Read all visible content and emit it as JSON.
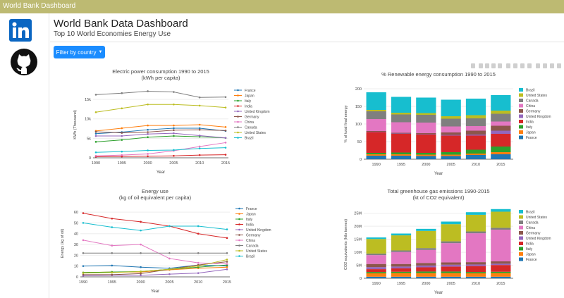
{
  "window": {
    "title": "World Bank Dashboard"
  },
  "header": {
    "title": "World Bank Data Dashboard",
    "subtitle": "Top 10 World Economies Energy Use"
  },
  "filter": {
    "label": "Filter by country"
  },
  "sidebar": {
    "icons": [
      "linkedin-icon",
      "github-icon"
    ]
  },
  "colors": {
    "France": "#1f77b4",
    "Japan": "#ff7f0e",
    "Italy": "#2ca02c",
    "India": "#d62728",
    "United Kingdom": "#9467bd",
    "Germany": "#8c564b",
    "China": "#e377c2",
    "Canada": "#7f7f7f",
    "United States": "#bcbd22",
    "Brazil": "#17becf"
  },
  "chart_data": [
    {
      "id": "electric",
      "type": "line",
      "title": "Electric power consumption 1990 to 2015",
      "subtitle": "(kWh per capita)",
      "xlabel": "Year",
      "ylabel": "KWh (Thousand)",
      "x": [
        1990,
        1995,
        2000,
        2005,
        2010,
        2015
      ],
      "ylim": [
        0,
        17
      ],
      "yticks": [
        0,
        5,
        10,
        15
      ],
      "ytick_labels": [
        "0",
        "5k",
        "10k",
        "15k"
      ],
      "series": [
        {
          "name": "France",
          "values": [
            6.2,
            6.6,
            7.2,
            7.6,
            7.6,
            6.9
          ]
        },
        {
          "name": "Japan",
          "values": [
            6.9,
            7.6,
            8.3,
            8.3,
            8.5,
            7.9
          ]
        },
        {
          "name": "Italy",
          "values": [
            4.1,
            4.6,
            5.3,
            5.6,
            5.4,
            5.1
          ]
        },
        {
          "name": "India",
          "values": [
            0.3,
            0.35,
            0.4,
            0.5,
            0.7,
            0.8
          ]
        },
        {
          "name": "United Kingdom",
          "values": [
            5.6,
            5.6,
            6.1,
            6.3,
            5.7,
            5.1
          ]
        },
        {
          "name": "Germany",
          "values": [
            6.7,
            6.4,
            6.6,
            7.1,
            7.2,
            7.0
          ]
        },
        {
          "name": "China",
          "values": [
            0.5,
            0.7,
            1.0,
            1.8,
            2.9,
            3.9
          ]
        },
        {
          "name": "Canada",
          "values": [
            16.2,
            16.6,
            17.1,
            16.9,
            15.5,
            15.6
          ]
        },
        {
          "name": "United States",
          "values": [
            11.7,
            12.7,
            13.7,
            13.7,
            13.4,
            12.9
          ]
        },
        {
          "name": "Brazil",
          "values": [
            1.4,
            1.6,
            1.9,
            2.0,
            2.4,
            2.6
          ]
        }
      ]
    },
    {
      "id": "renewable",
      "type": "bar",
      "stacked": true,
      "title": "% Renewable energy consumption 1990 to 2015",
      "xlabel": "Year",
      "ylabel": "% of total final energy",
      "categories": [
        "1990",
        "1995",
        "2000",
        "2005",
        "2010",
        "2015"
      ],
      "ylim": [
        0,
        200
      ],
      "yticks": [
        0,
        50,
        100,
        150,
        200
      ],
      "ytick_labels": [
        "0",
        "50",
        "100",
        "150",
        "200"
      ],
      "series": [
        {
          "name": "France",
          "values": [
            10,
            10,
            9,
            9,
            12,
            14
          ]
        },
        {
          "name": "Japan",
          "values": [
            4,
            4,
            4,
            4,
            4,
            6
          ]
        },
        {
          "name": "Italy",
          "values": [
            4,
            5,
            5,
            7,
            11,
            16
          ]
        },
        {
          "name": "India",
          "values": [
            59,
            53,
            52,
            47,
            40,
            36
          ]
        },
        {
          "name": "United Kingdom",
          "values": [
            1,
            1,
            1,
            2,
            3,
            9
          ]
        },
        {
          "name": "Germany",
          "values": [
            2,
            2,
            3,
            7,
            11,
            14
          ]
        },
        {
          "name": "China",
          "values": [
            34,
            30,
            30,
            17,
            13,
            12
          ]
        },
        {
          "name": "Canada",
          "values": [
            22,
            22,
            22,
            22,
            22,
            22
          ]
        },
        {
          "name": "United States",
          "values": [
            4,
            5,
            5,
            7,
            9,
            9
          ]
        },
        {
          "name": "Brazil",
          "values": [
            50,
            45,
            44,
            47,
            47,
            44
          ]
        }
      ]
    },
    {
      "id": "energy",
      "type": "line",
      "title": "Energy use",
      "subtitle": "(kg of oil equivalent per capita)",
      "xlabel": "Year",
      "ylabel": "Energy (kg of oil)",
      "x": [
        1990,
        1995,
        2000,
        2005,
        2010,
        2015
      ],
      "ylim": [
        0,
        62
      ],
      "yticks": [
        0,
        10,
        20,
        30,
        40,
        50,
        60
      ],
      "ytick_labels": [
        "0",
        "10",
        "20",
        "30",
        "40",
        "50",
        "60"
      ],
      "series": [
        {
          "name": "France",
          "values": [
            10,
            10.5,
            9,
            8,
            11,
            10
          ]
        },
        {
          "name": "Japan",
          "values": [
            4,
            4.5,
            4.5,
            6.5,
            8,
            9
          ]
        },
        {
          "name": "Italy",
          "values": [
            4,
            4.5,
            5,
            7,
            9,
            11
          ]
        },
        {
          "name": "India",
          "values": [
            59,
            54,
            51,
            47,
            40,
            36
          ]
        },
        {
          "name": "United Kingdom",
          "values": [
            1,
            1.5,
            1.5,
            2.5,
            3.5,
            7
          ]
        },
        {
          "name": "Germany",
          "values": [
            2,
            2,
            3,
            7,
            11,
            14
          ]
        },
        {
          "name": "China",
          "values": [
            34,
            29,
            30,
            17,
            13,
            12
          ]
        },
        {
          "name": "Canada",
          "values": [
            22,
            22,
            22,
            22,
            22,
            22
          ]
        },
        {
          "name": "United States",
          "values": [
            3.5,
            4,
            5,
            7,
            10,
            16
          ]
        },
        {
          "name": "Brazil",
          "values": [
            50,
            46,
            43,
            47,
            47,
            44
          ]
        }
      ]
    },
    {
      "id": "ghg",
      "type": "bar",
      "stacked": true,
      "title": "Total greenhouse gas emissions 1990-2015",
      "subtitle": "(kt of CO2 equivalent)",
      "xlabel": "Year",
      "ylabel": "CO2 equivalents (kilo tonnes)",
      "categories": [
        "1990",
        "1995",
        "2000",
        "2005",
        "2010",
        "2015"
      ],
      "ylim": [
        0,
        26
      ],
      "yticks": [
        0,
        5,
        10,
        15,
        20,
        25
      ],
      "ytick_labels": [
        "0",
        "5M",
        "10M",
        "15M",
        "20M",
        "25M"
      ],
      "series": [
        {
          "name": "France",
          "values": [
            0.6,
            0.6,
            0.6,
            0.6,
            0.6,
            0.6
          ]
        },
        {
          "name": "Japan",
          "values": [
            1.3,
            1.4,
            1.4,
            1.4,
            1.3,
            1.4
          ]
        },
        {
          "name": "Italy",
          "values": [
            0.5,
            0.5,
            0.6,
            0.6,
            0.5,
            0.5
          ]
        },
        {
          "name": "India",
          "values": [
            1.1,
            1.3,
            1.6,
            1.9,
            2.3,
            2.6
          ]
        },
        {
          "name": "United Kingdom",
          "values": [
            0.8,
            0.7,
            0.7,
            0.7,
            0.6,
            0.5
          ]
        },
        {
          "name": "Germany",
          "values": [
            1.2,
            1.0,
            1.0,
            0.9,
            0.9,
            0.9
          ]
        },
        {
          "name": "China",
          "values": [
            3.4,
            4.6,
            5.0,
            7.4,
            11.1,
            12.2
          ]
        },
        {
          "name": "Canada",
          "values": [
            0.6,
            0.6,
            0.7,
            0.7,
            0.7,
            0.7
          ]
        },
        {
          "name": "United States",
          "values": [
            5.6,
            5.8,
            6.6,
            6.6,
            6.4,
            6.2
          ]
        },
        {
          "name": "Brazil",
          "values": [
            0.6,
            0.7,
            0.8,
            1.0,
            1.0,
            1.0
          ]
        }
      ]
    }
  ]
}
